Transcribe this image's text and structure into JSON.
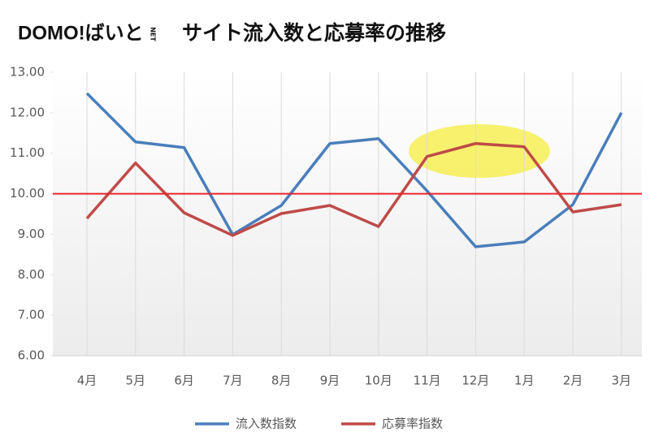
{
  "logo": {
    "text": "DOMO!ばいと",
    "sub": "NET"
  },
  "chart_data": {
    "type": "line",
    "title": "サイト流入数と応募率の推移",
    "categories": [
      "4月",
      "5月",
      "6月",
      "7月",
      "8月",
      "9月",
      "10月",
      "11月",
      "12月",
      "1月",
      "2月",
      "3月"
    ],
    "series": [
      {
        "name": "流入数指数",
        "color": "#4a7ebb",
        "values": [
          12.48,
          11.28,
          11.14,
          8.99,
          9.71,
          11.24,
          11.36,
          10.07,
          8.69,
          8.81,
          9.73,
          12.0
        ]
      },
      {
        "name": "応募率指数",
        "color": "#be4b48",
        "values": [
          9.39,
          10.76,
          9.53,
          8.97,
          9.51,
          9.71,
          9.19,
          10.92,
          11.24,
          11.16,
          9.55,
          9.73
        ]
      }
    ],
    "ylim": [
      6,
      13
    ],
    "yticks": [
      {
        "value": 6,
        "label": "6.00"
      },
      {
        "value": 7,
        "label": "7.00"
      },
      {
        "value": 8,
        "label": "8.00"
      },
      {
        "value": 9,
        "label": "9.00"
      },
      {
        "value": 10,
        "label": "10.00"
      },
      {
        "value": 11,
        "label": "11.00"
      },
      {
        "value": 12,
        "label": "12.00"
      },
      {
        "value": 13,
        "label": "13.00"
      }
    ],
    "reference_line": {
      "value": 10,
      "color": "#e8262a"
    },
    "grid": true
  }
}
